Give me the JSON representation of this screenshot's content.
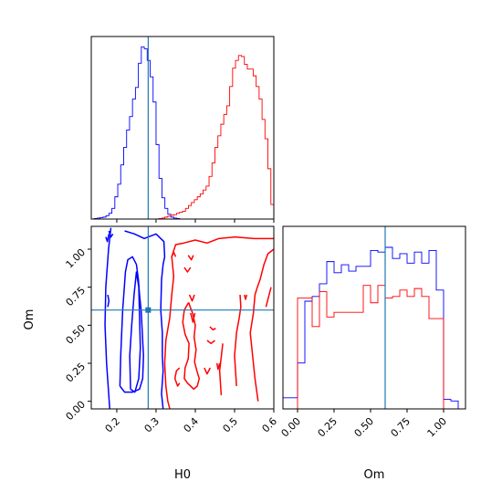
{
  "chart_data": [
    {
      "type": "histogram",
      "panel": "marginal-H0",
      "x": [
        0.135,
        0.1425,
        0.15,
        0.1575,
        0.165,
        0.1725,
        0.18,
        0.1875,
        0.195,
        0.2025,
        0.21,
        0.2175,
        0.225,
        0.2325,
        0.24,
        0.2475,
        0.255,
        0.2625,
        0.27,
        0.2775,
        0.285,
        0.2925,
        0.3,
        0.3075,
        0.315,
        0.3225,
        0.33,
        0.3375,
        0.345,
        0.3525,
        0.36,
        0.3675,
        0.375,
        0.3825,
        0.39,
        0.3975,
        0.405,
        0.4125,
        0.42,
        0.4275,
        0.435,
        0.4425,
        0.45,
        0.4575,
        0.465,
        0.4725,
        0.48,
        0.4875,
        0.495,
        0.5025,
        0.51,
        0.5175,
        0.525,
        0.5325,
        0.54,
        0.5475,
        0.555,
        0.5625,
        0.57,
        0.5775,
        0.585,
        0.5925,
        0.6
      ],
      "series": [
        {
          "color": "#0000ff",
          "counts": [
            0,
            0.5,
            1,
            1.5,
            2,
            3.5,
            6,
            11,
            23,
            36,
            56,
            74,
            92,
            106,
            124,
            136,
            161,
            178,
            176,
            164,
            147,
            121,
            77,
            42,
            22,
            11,
            5,
            2,
            1,
            0.5,
            0,
            0,
            0,
            0,
            0,
            0,
            0,
            0,
            0,
            0,
            0,
            0,
            0,
            0,
            0,
            0,
            0,
            0,
            0,
            0,
            0,
            0,
            0,
            0,
            0,
            0,
            0,
            0,
            0,
            0,
            0,
            0
          ]
        },
        {
          "color": "#ff0000",
          "counts": [
            0,
            0,
            0,
            0,
            0,
            0,
            0,
            0,
            0,
            0,
            0,
            0,
            0,
            0,
            0,
            0,
            0,
            0,
            0,
            0,
            0,
            0,
            0,
            0.5,
            1,
            2,
            3,
            4,
            4.5,
            6,
            7,
            8,
            11,
            14,
            17,
            20,
            23,
            26,
            30,
            34,
            44,
            58,
            74,
            86,
            98,
            108,
            117,
            137,
            156,
            164,
            169,
            168,
            160,
            155,
            155,
            148,
            137,
            124,
            103,
            83,
            52,
            15
          ]
        }
      ],
      "truth": 0.28,
      "xlim": [
        0.135,
        0.6
      ]
    },
    {
      "type": "contour",
      "panel": "joint-H0-Om",
      "xlabel": "H0",
      "ylabel": "Om",
      "xlim": [
        0.135,
        0.6
      ],
      "ylim": [
        -0.05,
        1.15
      ],
      "xticks": [
        "0.2",
        "0.3",
        "0.4",
        "0.5",
        "0.6"
      ],
      "yticks": [
        "0.00",
        "0.25",
        "0.50",
        "0.75",
        "1.00"
      ],
      "truth": {
        "H0": 0.28,
        "Om": 0.6
      },
      "series": [
        {
          "color": "#0000ff",
          "contours": [
            [
              [
                0.185,
                1.14
              ],
              [
                0.179,
                1.0
              ],
              [
                0.172,
                0.75
              ],
              [
                0.17,
                0.5
              ],
              [
                0.174,
                0.25
              ],
              [
                0.182,
                -0.05
              ]
            ],
            [
              [
                0.22,
                1.12
              ],
              [
                0.245,
                1.1
              ],
              [
                0.27,
                1.07
              ],
              [
                0.3,
                1.1
              ],
              [
                0.32,
                1.05
              ],
              [
                0.322,
                0.95
              ],
              [
                0.318,
                0.9
              ],
              [
                0.314,
                0.8
              ],
              [
                0.312,
                0.6
              ],
              [
                0.316,
                0.45
              ],
              [
                0.316,
                0.3
              ],
              [
                0.318,
                0.2
              ],
              [
                0.314,
                0.05
              ],
              [
                0.318,
                -0.05
              ]
            ],
            [
              [
                0.208,
                0.1
              ],
              [
                0.21,
                0.3
              ],
              [
                0.215,
                0.6
              ],
              [
                0.222,
                0.85
              ],
              [
                0.228,
                0.93
              ],
              [
                0.24,
                0.95
              ],
              [
                0.25,
                0.9
              ],
              [
                0.255,
                0.8
              ],
              [
                0.258,
                0.7
              ],
              [
                0.262,
                0.6
              ],
              [
                0.265,
                0.45
              ],
              [
                0.268,
                0.3
              ],
              [
                0.266,
                0.15
              ],
              [
                0.258,
                0.08
              ],
              [
                0.24,
                0.06
              ],
              [
                0.22,
                0.06
              ],
              [
                0.208,
                0.1
              ]
            ],
            [
              [
                0.235,
                0.08
              ],
              [
                0.233,
                0.3
              ],
              [
                0.238,
                0.5
              ],
              [
                0.244,
                0.7
              ],
              [
                0.25,
                0.85
              ],
              [
                0.256,
                0.75
              ],
              [
                0.258,
                0.55
              ],
              [
                0.26,
                0.35
              ],
              [
                0.256,
                0.15
              ],
              [
                0.246,
                0.06
              ],
              [
                0.235,
                0.08
              ]
            ],
            [
              [
                0.172,
                1.08
              ],
              [
                0.176,
                1.05
              ],
              [
                0.18,
                1.1
              ]
            ],
            [
              [
                0.18,
                1.12
              ],
              [
                0.185,
                1.08
              ],
              [
                0.19,
                1.1
              ]
            ],
            [
              [
                0.177,
                0.7
              ],
              [
                0.18,
                0.66
              ],
              [
                0.177,
                0.62
              ]
            ]
          ]
        },
        {
          "color": "#ff0000",
          "contours": [
            [
              [
                0.335,
                -0.05
              ],
              [
                0.33,
                0.0
              ],
              [
                0.325,
                0.1
              ],
              [
                0.322,
                0.25
              ],
              [
                0.325,
                0.4
              ],
              [
                0.335,
                0.55
              ],
              [
                0.34,
                0.7
              ],
              [
                0.345,
                0.82
              ],
              [
                0.34,
                0.95
              ],
              [
                0.35,
                1.03
              ],
              [
                0.37,
                1.04
              ],
              [
                0.4,
                1.06
              ],
              [
                0.43,
                1.04
              ],
              [
                0.46,
                1.07
              ],
              [
                0.5,
                1.08
              ],
              [
                0.55,
                1.07
              ],
              [
                0.6,
                1.07
              ]
            ],
            [
              [
                0.383,
                0.65
              ],
              [
                0.372,
                0.6
              ],
              [
                0.368,
                0.52
              ],
              [
                0.374,
                0.44
              ],
              [
                0.384,
                0.38
              ],
              [
                0.382,
                0.28
              ],
              [
                0.374,
                0.22
              ],
              [
                0.372,
                0.15
              ],
              [
                0.38,
                0.12
              ],
              [
                0.396,
                0.08
              ],
              [
                0.405,
                0.1
              ],
              [
                0.41,
                0.15
              ],
              [
                0.404,
                0.2
              ],
              [
                0.398,
                0.26
              ],
              [
                0.402,
                0.34
              ],
              [
                0.397,
                0.42
              ],
              [
                0.4,
                0.5
              ],
              [
                0.393,
                0.58
              ],
              [
                0.387,
                0.62
              ],
              [
                0.383,
                0.65
              ]
            ],
            [
              [
                0.36,
                0.22
              ],
              [
                0.352,
                0.2
              ],
              [
                0.348,
                0.15
              ],
              [
                0.355,
                0.1
              ],
              [
                0.36,
                0.12
              ]
            ],
            [
              [
                0.34,
                0.95
              ],
              [
                0.345,
                0.98
              ],
              [
                0.35,
                0.95
              ]
            ],
            [
              [
                0.423,
                0.22
              ],
              [
                0.43,
                0.18
              ],
              [
                0.438,
                0.22
              ]
            ],
            [
              [
                0.43,
                0.4
              ],
              [
                0.44,
                0.38
              ],
              [
                0.45,
                0.4
              ]
            ],
            [
              [
                0.437,
                0.49
              ],
              [
                0.445,
                0.47
              ],
              [
                0.452,
                0.48
              ]
            ],
            [
              [
                0.385,
                0.7
              ],
              [
                0.392,
                0.66
              ],
              [
                0.398,
                0.7
              ]
            ],
            [
              [
                0.388,
                0.58
              ],
              [
                0.394,
                0.52
              ],
              [
                0.399,
                0.58
              ]
            ],
            [
              [
                0.372,
                0.88
              ],
              [
                0.38,
                0.85
              ],
              [
                0.388,
                0.88
              ]
            ],
            [
              [
                0.382,
                0.96
              ],
              [
                0.39,
                0.93
              ],
              [
                0.395,
                0.96
              ]
            ],
            [
              [
                0.56,
                0.0
              ],
              [
                0.552,
                0.15
              ],
              [
                0.546,
                0.3
              ],
              [
                0.54,
                0.45
              ],
              [
                0.548,
                0.58
              ],
              [
                0.552,
                0.7
              ],
              [
                0.558,
                0.75
              ],
              [
                0.565,
                0.8
              ],
              [
                0.575,
                0.9
              ],
              [
                0.585,
                0.97
              ],
              [
                0.6,
                1.0
              ]
            ],
            [
              [
                0.505,
                0.1
              ],
              [
                0.5,
                0.3
              ],
              [
                0.505,
                0.45
              ],
              [
                0.512,
                0.55
              ],
              [
                0.516,
                0.62
              ],
              [
                0.514,
                0.7
              ]
            ],
            [
              [
                0.466,
                0.04
              ],
              [
                0.462,
                0.2
              ],
              [
                0.47,
                0.38
              ]
            ],
            [
              [
                0.455,
                0.25
              ],
              [
                0.458,
                0.21
              ],
              [
                0.462,
                0.25
              ]
            ],
            [
              [
                0.525,
                0.7
              ],
              [
                0.528,
                0.67
              ],
              [
                0.531,
                0.7
              ]
            ],
            [
              [
                0.58,
                0.62
              ],
              [
                0.588,
                0.7
              ],
              [
                0.593,
                0.75
              ]
            ]
          ]
        }
      ]
    },
    {
      "type": "histogram",
      "panel": "marginal-Om",
      "xlabel": "Om",
      "xlim": [
        -0.1,
        1.15
      ],
      "xticks": [
        "0.00",
        "0.25",
        "0.50",
        "0.75",
        "1.00"
      ],
      "truth": 0.6,
      "bin_edges": [
        -0.1,
        -0.05,
        0.0,
        0.05,
        0.1,
        0.15,
        0.2,
        0.25,
        0.3,
        0.35,
        0.4,
        0.45,
        0.5,
        0.55,
        0.6,
        0.65,
        0.7,
        0.75,
        0.8,
        0.85,
        0.9,
        0.95,
        1.0,
        1.05,
        1.1,
        1.15
      ],
      "series": [
        {
          "color": "#0000ff",
          "counts": [
            7,
            7,
            29,
            68,
            71,
            79,
            93,
            86,
            91,
            87,
            90,
            90,
            100,
            99,
            102,
            95,
            98,
            92,
            99,
            92,
            100,
            75,
            6,
            5,
            0
          ]
        },
        {
          "color": "#ff0000",
          "counts": [
            0,
            0,
            70,
            70,
            52,
            74,
            58,
            61,
            61,
            61,
            61,
            78,
            67,
            78,
            70,
            71,
            75,
            71,
            76,
            71,
            57,
            57,
            0,
            0,
            0
          ]
        }
      ]
    }
  ]
}
